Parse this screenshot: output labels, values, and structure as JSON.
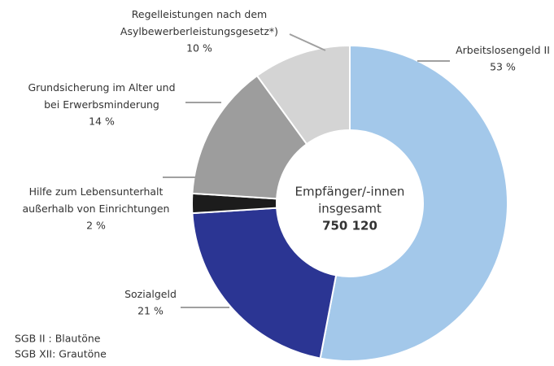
{
  "chart_data": {
    "type": "donut",
    "categories": [
      "Arbeitslosengeld II",
      "Sozialgeld",
      "Hilfe zum Lebensunterhalt\naußerhalb von  Einrichtungen",
      "Grundsicherung im Alter und\nbei Erwerbsminderung",
      "Regelleistungen nach dem\nAsylbewerberleistungsgesetz*)"
    ],
    "values": [
      53,
      21,
      2,
      14,
      10
    ],
    "value_labels": [
      "53 %",
      "21 %",
      "2 %",
      "14 %",
      "10 %"
    ],
    "colors": [
      "#a3c8ea",
      "#2b3593",
      "#1c1c1c",
      "#9d9d9d",
      "#d4d4d4"
    ],
    "center_label": [
      "Empfänger/-innen",
      "insgesamt",
      "750 120"
    ],
    "notes": [
      "SGB II : Blautöne",
      "SGB XII: Grautöne"
    ]
  }
}
